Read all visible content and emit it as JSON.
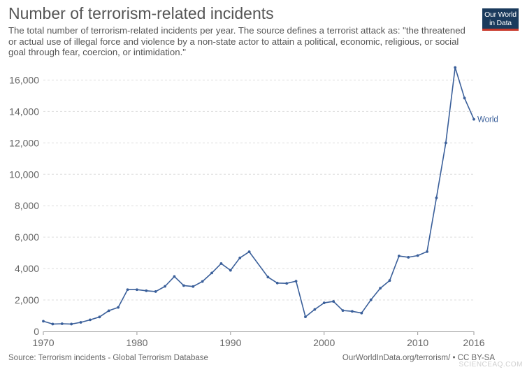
{
  "header": {
    "title": "Number of terrorism-related incidents",
    "subtitle": "The total number of terrorism-related incidents per year. The source defines a terrorist attack as: \"the threatened or actual use of illegal force and violence by a non-state actor to attain a political, economic, religious, or social goal through fear, coercion, or intimidation.\""
  },
  "logo": {
    "line1": "Our World",
    "line2": "in Data"
  },
  "footer": {
    "source": "Source: Terrorism incidents - Global Terrorism Database",
    "credit": "OurWorldInData.org/terrorism/ • CC BY-SA",
    "watermark": "SCIENCEAQ.COM"
  },
  "colors": {
    "series": "#3a5f9a",
    "logo_bg": "#1a3a5c",
    "logo_accent": "#c8392b"
  },
  "chart_data": {
    "type": "line",
    "title": "Number of terrorism-related incidents",
    "xlabel": "",
    "ylabel": "",
    "xlim": [
      1970,
      2016
    ],
    "ylim": [
      0,
      17000
    ],
    "x_ticks": [
      "1970",
      "1980",
      "1990",
      "2000",
      "2010",
      "2016"
    ],
    "y_ticks": [
      "0",
      "2,000",
      "4,000",
      "6,000",
      "8,000",
      "10,000",
      "12,000",
      "14,000",
      "16,000"
    ],
    "y_tick_values": [
      0,
      2000,
      4000,
      6000,
      8000,
      10000,
      12000,
      14000,
      16000
    ],
    "x_tick_values": [
      1970,
      1980,
      1990,
      2000,
      2010,
      2016
    ],
    "grid": true,
    "series": [
      {
        "name": "World",
        "x": [
          1970,
          1971,
          1972,
          1973,
          1974,
          1975,
          1976,
          1977,
          1978,
          1979,
          1980,
          1981,
          1982,
          1983,
          1984,
          1985,
          1986,
          1987,
          1988,
          1989,
          1990,
          1991,
          1992,
          1994,
          1995,
          1996,
          1997,
          1998,
          1999,
          2000,
          2001,
          2002,
          2003,
          2004,
          2005,
          2006,
          2007,
          2008,
          2009,
          2010,
          2011,
          2012,
          2013,
          2014,
          2015,
          2016
        ],
        "values": [
          650,
          470,
          490,
          470,
          580,
          740,
          920,
          1320,
          1530,
          2660,
          2660,
          2590,
          2540,
          2870,
          3500,
          2920,
          2860,
          3180,
          3720,
          4320,
          3890,
          4680,
          5070,
          3460,
          3080,
          3060,
          3200,
          930,
          1400,
          1820,
          1910,
          1330,
          1280,
          1170,
          2010,
          2750,
          3240,
          4800,
          4720,
          4830,
          5080,
          8500,
          12000,
          16800,
          14850,
          13500
        ]
      }
    ]
  }
}
